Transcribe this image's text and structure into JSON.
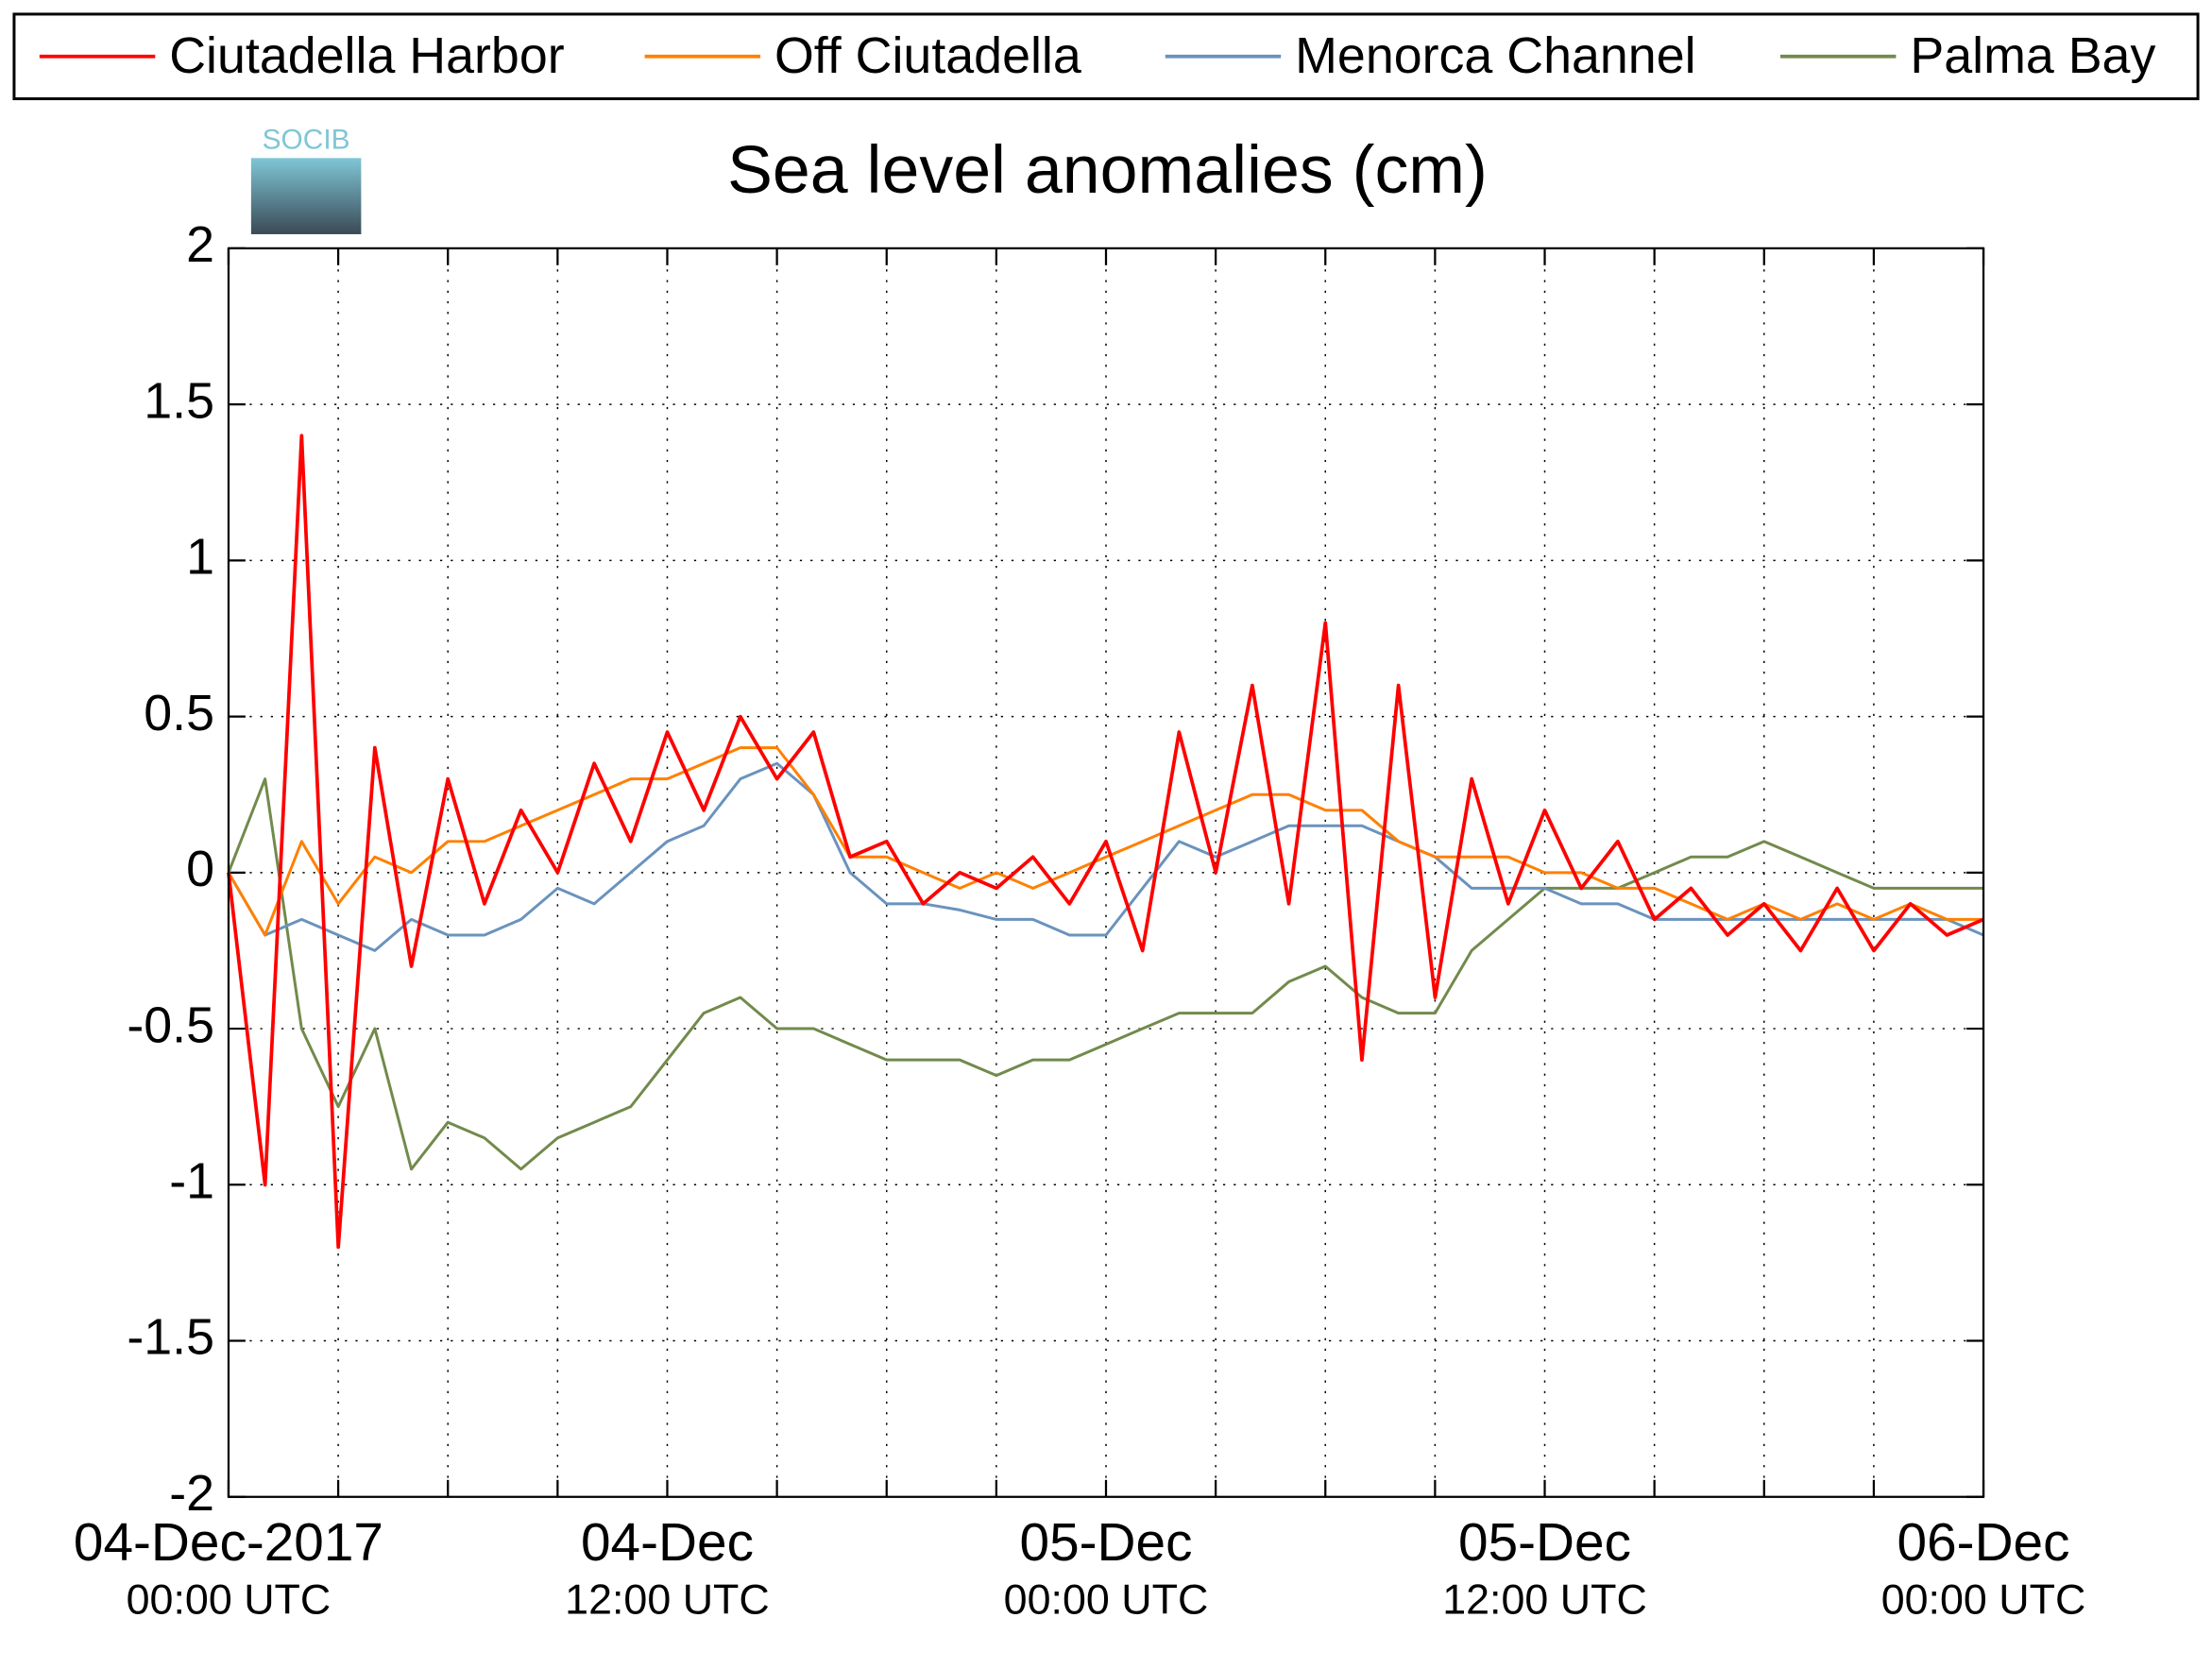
{
  "chart_data": {
    "type": "line",
    "title": "Sea level anomalies (cm)",
    "logo": "SOCIB",
    "x": [
      "2017-12-04T00:00",
      "2017-12-04T01:00",
      "2017-12-04T02:00",
      "2017-12-04T03:00",
      "2017-12-04T04:00",
      "2017-12-04T05:00",
      "2017-12-04T06:00",
      "2017-12-04T07:00",
      "2017-12-04T08:00",
      "2017-12-04T09:00",
      "2017-12-04T10:00",
      "2017-12-04T11:00",
      "2017-12-04T12:00",
      "2017-12-04T13:00",
      "2017-12-04T14:00",
      "2017-12-04T15:00",
      "2017-12-04T16:00",
      "2017-12-04T17:00",
      "2017-12-04T18:00",
      "2017-12-04T19:00",
      "2017-12-04T20:00",
      "2017-12-04T21:00",
      "2017-12-04T22:00",
      "2017-12-04T23:00",
      "2017-12-05T00:00",
      "2017-12-05T01:00",
      "2017-12-05T02:00",
      "2017-12-05T03:00",
      "2017-12-05T04:00",
      "2017-12-05T05:00",
      "2017-12-05T06:00",
      "2017-12-05T07:00",
      "2017-12-05T08:00",
      "2017-12-05T09:00",
      "2017-12-05T10:00",
      "2017-12-05T11:00",
      "2017-12-05T12:00",
      "2017-12-05T13:00",
      "2017-12-05T14:00",
      "2017-12-05T15:00",
      "2017-12-05T16:00",
      "2017-12-05T17:00",
      "2017-12-05T18:00",
      "2017-12-05T19:00",
      "2017-12-05T20:00",
      "2017-12-05T21:00",
      "2017-12-05T22:00",
      "2017-12-05T23:00",
      "2017-12-06T00:00"
    ],
    "series": [
      {
        "name": "Ciutadella Harbor",
        "color": "#ff0000",
        "values": [
          0,
          -1.0,
          1.4,
          -1.2,
          0.4,
          -0.3,
          0.3,
          -0.1,
          0.2,
          0.0,
          0.35,
          0.1,
          0.45,
          0.2,
          0.5,
          0.3,
          0.45,
          0.05,
          0.1,
          -0.1,
          0.0,
          -0.05,
          0.05,
          -0.1,
          0.1,
          -0.25,
          0.45,
          0.0,
          0.6,
          -0.1,
          0.8,
          -0.6,
          0.6,
          -0.4,
          0.3,
          -0.1,
          0.2,
          -0.05,
          0.1,
          -0.15,
          -0.05,
          -0.2,
          -0.1,
          -0.25,
          -0.05,
          -0.25,
          -0.1,
          -0.2,
          -0.15
        ]
      },
      {
        "name": "Off Ciutadella",
        "color": "#ff8000",
        "values": [
          0,
          -0.2,
          0.1,
          -0.1,
          0.05,
          0.0,
          0.1,
          0.1,
          0.15,
          0.2,
          0.25,
          0.3,
          0.3,
          0.35,
          0.4,
          0.4,
          0.25,
          0.05,
          0.05,
          0.0,
          -0.05,
          0.0,
          -0.05,
          0.0,
          0.05,
          0.1,
          0.15,
          0.2,
          0.25,
          0.25,
          0.2,
          0.2,
          0.1,
          0.05,
          0.05,
          0.05,
          0.0,
          0.0,
          -0.05,
          -0.05,
          -0.1,
          -0.15,
          -0.1,
          -0.15,
          -0.1,
          -0.15,
          -0.1,
          -0.15,
          -0.15
        ]
      },
      {
        "name": "Menorca Channel",
        "color": "#6a93bd",
        "values": [
          0,
          -0.2,
          -0.15,
          -0.2,
          -0.25,
          -0.15,
          -0.2,
          -0.2,
          -0.15,
          -0.05,
          -0.1,
          0.0,
          0.1,
          0.15,
          0.3,
          0.35,
          0.25,
          0.0,
          -0.1,
          -0.1,
          -0.12,
          -0.15,
          -0.15,
          -0.2,
          -0.2,
          -0.05,
          0.1,
          0.05,
          0.1,
          0.15,
          0.15,
          0.15,
          0.1,
          0.05,
          -0.05,
          -0.05,
          -0.05,
          -0.1,
          -0.1,
          -0.15,
          -0.15,
          -0.15,
          -0.15,
          -0.15,
          -0.15,
          -0.15,
          -0.15,
          -0.15,
          -0.2
        ]
      },
      {
        "name": "Palma Bay",
        "color": "#728a4c",
        "values": [
          0,
          0.3,
          -0.5,
          -0.75,
          -0.5,
          -0.95,
          -0.8,
          -0.85,
          -0.95,
          -0.85,
          -0.8,
          -0.75,
          -0.6,
          -0.45,
          -0.4,
          -0.5,
          -0.5,
          -0.55,
          -0.6,
          -0.6,
          -0.6,
          -0.65,
          -0.6,
          -0.6,
          -0.55,
          -0.5,
          -0.45,
          -0.45,
          -0.45,
          -0.35,
          -0.3,
          -0.4,
          -0.45,
          -0.45,
          -0.25,
          -0.15,
          -0.05,
          -0.05,
          -0.05,
          0.0,
          0.05,
          0.05,
          0.1,
          0.05,
          0.0,
          -0.05,
          -0.05,
          -0.05,
          -0.05
        ]
      }
    ],
    "xlim": [
      "2017-12-04T00:00",
      "2017-12-06T00:00"
    ],
    "xticks": [
      {
        "value": "2017-12-04T00:00",
        "label": "04-Dec-2017",
        "sublabel": "00:00 UTC"
      },
      {
        "value": "2017-12-04T12:00",
        "label": "04-Dec",
        "sublabel": "12:00 UTC"
      },
      {
        "value": "2017-12-05T00:00",
        "label": "05-Dec",
        "sublabel": "00:00 UTC"
      },
      {
        "value": "2017-12-05T12:00",
        "label": "05-Dec",
        "sublabel": "12:00 UTC"
      },
      {
        "value": "2017-12-06T00:00",
        "label": "06-Dec",
        "sublabel": "00:00 UTC"
      }
    ],
    "x_minor_ticks": [
      "2017-12-04T03:00",
      "2017-12-04T06:00",
      "2017-12-04T09:00",
      "2017-12-04T15:00",
      "2017-12-04T18:00",
      "2017-12-04T21:00",
      "2017-12-05T03:00",
      "2017-12-05T06:00",
      "2017-12-05T09:00",
      "2017-12-05T15:00",
      "2017-12-05T18:00",
      "2017-12-05T21:00"
    ],
    "ylim": [
      -2,
      2
    ],
    "yticks": [
      -2,
      -1.5,
      -1,
      -0.5,
      0,
      0.5,
      1,
      1.5,
      2
    ],
    "grid": true,
    "legend": "top"
  }
}
